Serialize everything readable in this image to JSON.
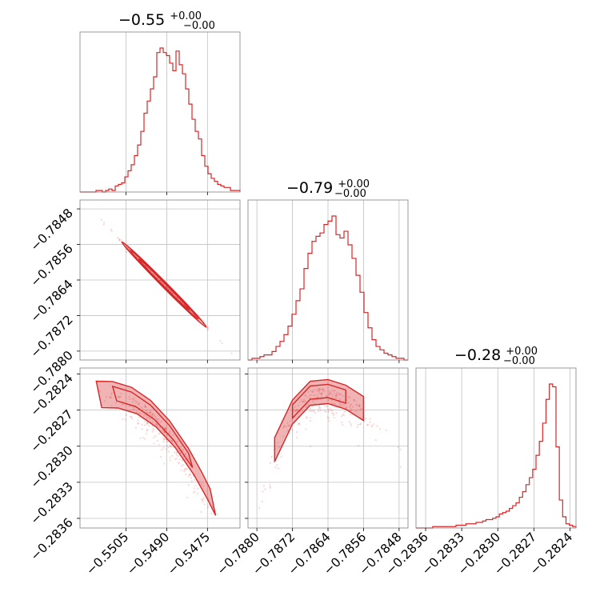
{
  "chart_data": {
    "type": "corner",
    "color": "#d62728",
    "grid": true,
    "parameters": [
      {
        "title": "−0.55",
        "upper": "+0.00",
        "lower": "−0.00",
        "range": [
          -0.5522,
          -0.5463
        ],
        "ticks": [
          -0.5505,
          -0.549,
          -0.5475
        ],
        "tick_labels": [
          "−0.5505",
          "−0.5490",
          "−0.5475"
        ],
        "mean": -0.5491,
        "sd": 0.00078
      },
      {
        "title": "−0.79",
        "upper": "+0.00",
        "lower": "−0.00",
        "range": [
          -0.7882,
          -0.7846
        ],
        "ticks": [
          -0.788,
          -0.7872,
          -0.7864,
          -0.7856,
          -0.7848
        ],
        "tick_labels": [
          "−0.7880",
          "−0.7872",
          "−0.7864",
          "−0.7856",
          "−0.7848"
        ],
        "mean": -0.7865,
        "sd": 0.00048
      },
      {
        "title": "−0.28",
        "upper": "+0.00",
        "lower": "−0.00",
        "range": [
          -0.28368,
          -0.28235
        ],
        "ticks": [
          -0.2836,
          -0.2833,
          -0.283,
          -0.2827,
          -0.2824
        ],
        "tick_labels": [
          "−0.2836",
          "−0.2833",
          "−0.2830",
          "−0.2827",
          "−0.2824"
        ],
        "peak": -0.28248
      }
    ],
    "histograms": [
      {
        "bins": [
          -0.5522,
          -0.5463
        ],
        "counts": [
          0,
          0,
          0,
          0,
          0,
          1,
          1,
          0,
          1,
          2,
          1,
          4,
          5,
          6,
          10,
          14,
          18,
          24,
          31,
          40,
          52,
          60,
          68,
          76,
          92,
          95,
          92,
          90,
          85,
          80,
          93,
          84,
          78,
          68,
          58,
          48,
          40,
          35,
          24,
          17,
          12,
          9,
          7,
          5,
          4,
          3,
          3,
          1,
          1,
          1
        ]
      },
      {
        "bins": [
          -0.7882,
          -0.7846
        ],
        "counts": [
          0,
          1,
          1,
          2,
          3,
          3,
          5,
          8,
          11,
          15,
          20,
          27,
          35,
          42,
          54,
          63,
          70,
          73,
          75,
          80,
          82,
          85,
          74,
          72,
          76,
          68,
          60,
          50,
          40,
          28,
          19,
          12,
          8,
          6,
          4,
          3,
          2,
          1,
          1,
          0
        ]
      },
      {
        "bins": [
          -0.28368,
          -0.28235
        ],
        "counts": [
          0,
          0,
          0,
          0,
          0,
          1,
          1,
          1,
          1,
          1,
          1,
          1,
          2,
          2,
          2,
          3,
          3,
          3,
          4,
          4,
          5,
          6,
          6,
          7,
          8,
          10,
          11,
          12,
          14,
          16,
          18,
          22,
          26,
          31,
          36,
          42,
          52,
          62,
          75,
          92,
          103,
          101,
          58,
          20,
          8,
          3,
          2,
          1
        ]
      }
    ]
  }
}
